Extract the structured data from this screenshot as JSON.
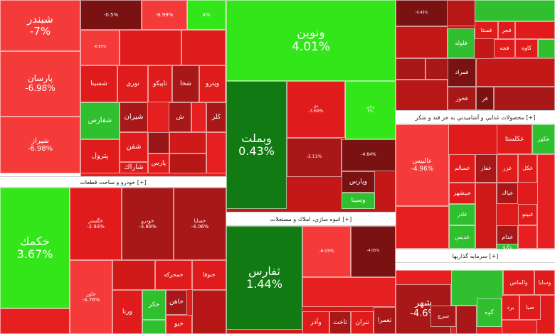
{
  "chart_data": {
    "type": "treemap",
    "value_unit": "%",
    "colors": {
      "strong_green": "#33e61a",
      "green": "#2fbf2f",
      "dark_green": "#127a12",
      "light_red": "#f53a3a",
      "red": "#e01b1b",
      "dark_red": "#a81818",
      "darker_red": "#7a1212"
    },
    "sectors": [
      {
        "label": "خودرو و ساخت قطعات [+]"
      },
      {
        "label": "انبوه سازي، املاك و مستغلات [+]"
      },
      {
        "label": "محصولات غذايي و آشاميدني به جز قند و شكر [+]"
      },
      {
        "label": "سرمايه گذاريها [+]"
      }
    ],
    "tiles": [
      {
        "name": "شبندر",
        "change": "-7%",
        "value": -7
      },
      {
        "name": "پارسان",
        "change": "-6.98%",
        "value": -6.98
      },
      {
        "name": "شيراز",
        "change": "-6.98%",
        "value": -6.98
      },
      {
        "name": "",
        "change": "-0.5%",
        "value": -0.5
      },
      {
        "name": "",
        "change": "-6.99%",
        "value": -6.99
      },
      {
        "name": "",
        "change": "4%",
        "value": 4
      },
      {
        "name": "",
        "change": "-6.95%",
        "value": -6.95
      },
      {
        "name": "",
        "change": "",
        "value": -3
      },
      {
        "name": "",
        "change": "",
        "value": -2
      },
      {
        "name": "شسينا",
        "change": "",
        "value": -3
      },
      {
        "name": "نوري",
        "change": "",
        "value": -2
      },
      {
        "name": "تاپيكو",
        "change": "",
        "value": -3
      },
      {
        "name": "شخا",
        "change": "",
        "value": -2
      },
      {
        "name": "وپترو",
        "change": "",
        "value": -3
      },
      {
        "name": "شفارس",
        "change": "",
        "value": 2
      },
      {
        "name": "شيران",
        "change": "",
        "value": -3
      },
      {
        "name": "ش",
        "change": "",
        "value": -2
      },
      {
        "name": "كلر",
        "change": "",
        "value": -3
      },
      {
        "name": "شفن",
        "change": "",
        "value": -4
      },
      {
        "name": "پترول",
        "change": "",
        "value": -3
      },
      {
        "name": "شاراك",
        "change": "",
        "value": -4
      },
      {
        "name": "پارس",
        "change": "",
        "value": -3
      },
      {
        "name": "ونوين",
        "change": "4.01%",
        "value": 4.01
      },
      {
        "name": "وبملت",
        "change": "0.43%",
        "value": 0.43
      },
      {
        "name": "دي",
        "change": "-3.69%",
        "value": -3.69
      },
      {
        "name": "وخاور",
        "change": "5%",
        "value": 5
      },
      {
        "name": "",
        "change": "-2.11%",
        "value": -2.11
      },
      {
        "name": "",
        "change": "-4.84%",
        "value": -4.84
      },
      {
        "name": "وپارس",
        "change": "",
        "value": -3
      },
      {
        "name": "وسينا",
        "change": "",
        "value": 3
      },
      {
        "name": "",
        "change": "-0.43%",
        "value": -0.43
      },
      {
        "name": "فلوله",
        "change": "",
        "value": 3
      },
      {
        "name": "فجر",
        "change": "",
        "value": -3
      },
      {
        "name": "فمنتا",
        "change": "",
        "value": -3
      },
      {
        "name": "",
        "change": "",
        "value": -5
      },
      {
        "name": "",
        "change": "",
        "value": -5
      },
      {
        "name": "فمراد",
        "change": "",
        "value": -4
      },
      {
        "name": "فخوز",
        "change": "",
        "value": -4
      },
      {
        "name": "فر",
        "change": "",
        "value": -3
      },
      {
        "name": "كاوه",
        "change": "",
        "value": -3
      },
      {
        "name": "فجه",
        "change": "",
        "value": -3
      },
      {
        "name": "خكمك",
        "change": "3.67%",
        "value": 3.67
      },
      {
        "name": "خگستر",
        "change": "-2.93%",
        "value": -2.93
      },
      {
        "name": "خودرو",
        "change": "-3.89%",
        "value": -3.89
      },
      {
        "name": "خساپا",
        "change": "-4.06%",
        "value": -4.06
      },
      {
        "name": "خاور",
        "change": "-4.76%",
        "value": -4.76
      },
      {
        "name": "خمحركه",
        "change": "",
        "value": -4
      },
      {
        "name": "خنوقا",
        "change": "",
        "value": -4
      },
      {
        "name": "ورنا",
        "change": "",
        "value": -4
      },
      {
        "name": "خكر",
        "change": "",
        "value": 3
      },
      {
        "name": "خاهن",
        "change": "",
        "value": -4
      },
      {
        "name": "خبو",
        "change": "",
        "value": -4
      },
      {
        "name": "ثفارس",
        "change": "1.44%",
        "value": 1.44
      },
      {
        "name": "",
        "change": "-6.05%",
        "value": -6.05
      },
      {
        "name": "",
        "change": "-4.05%",
        "value": -4.05
      },
      {
        "name": "ثاخت",
        "change": "",
        "value": -4
      },
      {
        "name": "تنران",
        "change": "",
        "value": -4
      },
      {
        "name": "وآذر",
        "change": "",
        "value": -4
      },
      {
        "name": "ثعمرا",
        "change": "",
        "value": -4
      },
      {
        "name": "غكلستا",
        "change": "",
        "value": -3
      },
      {
        "name": "عالييس",
        "change": "-4.96%",
        "value": -4.96
      },
      {
        "name": "غسالم",
        "change": "",
        "value": -4
      },
      {
        "name": "غفار",
        "change": "",
        "value": -4
      },
      {
        "name": "غبيشهر",
        "change": "",
        "value": -4
      },
      {
        "name": "غادر",
        "change": "",
        "value": 3
      },
      {
        "name": "غديس",
        "change": "",
        "value": 3
      },
      {
        "name": "غكل",
        "change": "",
        "value": -4
      },
      {
        "name": "غزر",
        "change": "",
        "value": -4
      },
      {
        "name": "غياك",
        "change": "",
        "value": -4
      },
      {
        "name": "غبينو",
        "change": "",
        "value": -4
      },
      {
        "name": "غدام",
        "change": "",
        "value": -4
      },
      {
        "name": "غگيلا",
        "change": "",
        "value": 3
      },
      {
        "name": "غكور",
        "change": "",
        "value": 3
      },
      {
        "name": "شهر",
        "change": "-4.6%",
        "value": -4.6
      },
      {
        "name": "والماس",
        "change": "",
        "value": -4
      },
      {
        "name": "وسايا",
        "change": "",
        "value": -4
      },
      {
        "name": "صبا",
        "change": "",
        "value": -4
      },
      {
        "name": "برد",
        "change": "",
        "value": -4
      },
      {
        "name": "سرچ",
        "change": "",
        "value": 3
      },
      {
        "name": "گوه",
        "change": "",
        "value": 3
      }
    ]
  }
}
